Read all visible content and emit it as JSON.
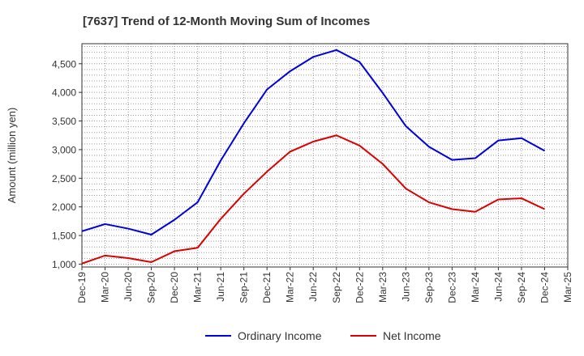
{
  "chart_data": {
    "type": "line",
    "title": "[7637]  Trend of 12-Month Moving Sum of Incomes",
    "xlabel": "",
    "ylabel": "Amount (million yen)",
    "ylim": [
      950,
      4850
    ],
    "yticks": [
      1000,
      1500,
      2000,
      2500,
      3000,
      3500,
      4000,
      4500
    ],
    "ytick_labels": [
      "1,000",
      "1,500",
      "2,000",
      "2,500",
      "3,000",
      "3,500",
      "4,000",
      "4,500"
    ],
    "categories": [
      "Dec-19",
      "Mar-20",
      "Jun-20",
      "Sep-20",
      "Dec-20",
      "Mar-21",
      "Jun-21",
      "Sep-21",
      "Dec-21",
      "Mar-22",
      "Jun-22",
      "Sep-22",
      "Dec-22",
      "Mar-23",
      "Jun-23",
      "Sep-23",
      "Dec-23",
      "Mar-24",
      "Jun-24",
      "Sep-24",
      "Dec-24",
      "Mar-25"
    ],
    "grid": true,
    "legend_position": "bottom-center",
    "series": [
      {
        "name": "Ordinary Income",
        "color": "#0000dd",
        "values": [
          1575,
          1700,
          1620,
          1515,
          1775,
          2080,
          2810,
          3460,
          4050,
          4370,
          4620,
          4740,
          4530,
          3990,
          3410,
          3050,
          2820,
          2850,
          3160,
          3200,
          2980,
          null
        ]
      },
      {
        "name": "Net Income",
        "color": "#dd0000",
        "values": [
          1010,
          1150,
          1105,
          1035,
          1225,
          1285,
          1790,
          2230,
          2615,
          2965,
          3140,
          3250,
          3070,
          2750,
          2320,
          2080,
          1960,
          1915,
          2130,
          2150,
          1960,
          null
        ]
      }
    ]
  }
}
